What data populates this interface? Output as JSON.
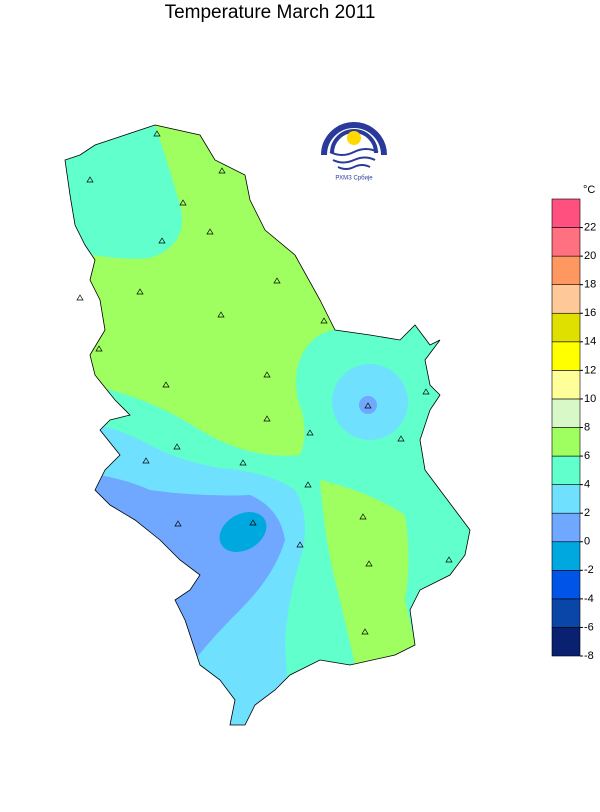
{
  "title": "Temperature  March  2011",
  "logo_text": "РХМЗ Србије",
  "colorbar": {
    "unit": "°C",
    "min": -8,
    "max": 24,
    "ticks": [
      -8,
      -6,
      -4,
      -2,
      0,
      2,
      4,
      6,
      8,
      10,
      12,
      14,
      16,
      18,
      20,
      22
    ],
    "colors": [
      "#0a2070",
      "#0a45a8",
      "#0055e8",
      "#00a8e0",
      "#70a8ff",
      "#70e0ff",
      "#60ffcc",
      "#a0ff60",
      "#d8f8c8",
      "#ffff99",
      "#ffff00",
      "#e0e000",
      "#ffc898",
      "#ff9860",
      "#ff7080",
      "#ff5080"
    ]
  }
}
